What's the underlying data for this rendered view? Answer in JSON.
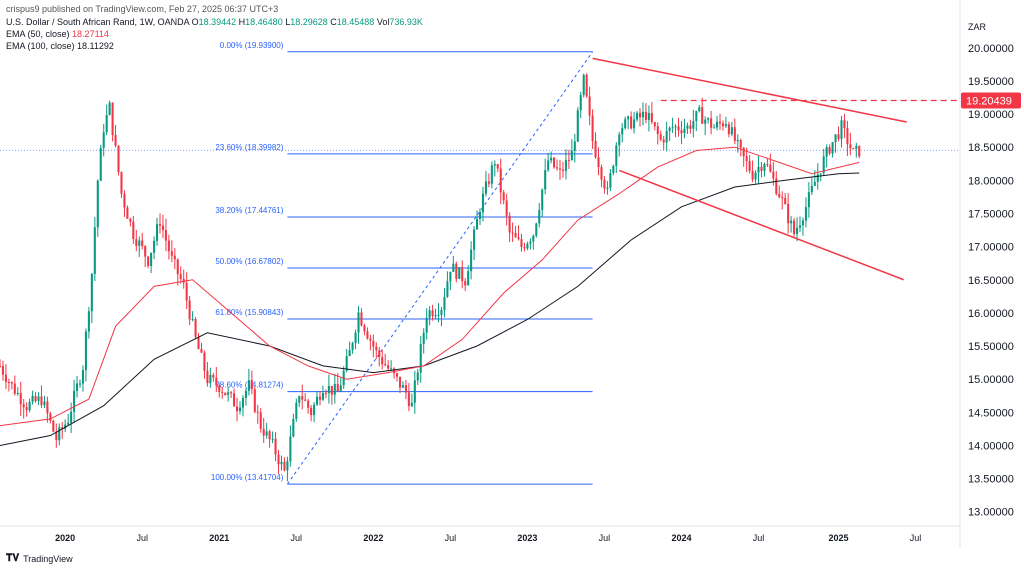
{
  "header": {
    "publisher": "crispus9 published on TradingView.com, Feb 27, 2025 06:37 UTC+3",
    "symbol": "U.S. Dollar / South African Rand, 1W, OANDA",
    "ohlc": [
      {
        "k": "O",
        "v": "18.39442"
      },
      {
        "k": "H",
        "v": "18.46480"
      },
      {
        "k": "L",
        "v": "18.29628"
      },
      {
        "k": "C",
        "v": "18.45488"
      },
      {
        "k": "Vol",
        "v": "736.93K"
      }
    ],
    "ema50_label": "EMA (50, close)",
    "ema50_value": "18.27114",
    "ema100_label": "EMA (100, close)",
    "ema100_value": "18.11292",
    "currency": "ZAR"
  },
  "footer": {
    "brand": "TradingView",
    "logo_icon": "tradingview-logo-icon"
  },
  "colors": {
    "up": "#089981",
    "down": "#f23645",
    "ema50": "#f23645",
    "ema100": "#131722",
    "fib": "#2962ff",
    "trend": "#f23645",
    "grid": "#eef0f3"
  },
  "chart_data": {
    "type": "candlestick",
    "ylim": [
      12.8,
      20.6
    ],
    "yticks": [
      "20.00000",
      "19.50000",
      "19.00000",
      "18.50000",
      "18.00000",
      "17.50000",
      "17.00000",
      "16.50000",
      "16.00000",
      "15.50000",
      "15.00000",
      "14.50000",
      "14.00000",
      "13.50000",
      "13.00000"
    ],
    "ytick_values": [
      20.0,
      19.5,
      19.0,
      18.5,
      18.0,
      17.5,
      17.0,
      16.5,
      16.0,
      15.5,
      15.0,
      14.5,
      14.0,
      13.5,
      13.0
    ],
    "xlim": [
      "2019-08-05",
      "2025-10-20"
    ],
    "xticks": [
      {
        "label": "2020",
        "date": "2020-01-06",
        "year": true
      },
      {
        "label": "Jul",
        "date": "2020-07-06",
        "year": false
      },
      {
        "label": "2021",
        "date": "2021-01-04",
        "year": true
      },
      {
        "label": "Jul",
        "date": "2021-07-05",
        "year": false
      },
      {
        "label": "2022",
        "date": "2022-01-03",
        "year": true
      },
      {
        "label": "Jul",
        "date": "2022-07-04",
        "year": false
      },
      {
        "label": "2023",
        "date": "2023-01-02",
        "year": true
      },
      {
        "label": "Jul",
        "date": "2023-07-03",
        "year": false
      },
      {
        "label": "2024",
        "date": "2024-01-01",
        "year": true
      },
      {
        "label": "Jul",
        "date": "2024-07-01",
        "year": false
      },
      {
        "label": "2025",
        "date": "2025-01-06",
        "year": true
      },
      {
        "label": "Jul",
        "date": "2025-07-07",
        "year": false
      }
    ],
    "close_path": [
      [
        "2019-08-05",
        15.2
      ],
      [
        "2019-09-02",
        14.9
      ],
      [
        "2019-10-07",
        14.6
      ],
      [
        "2019-11-11",
        14.7
      ],
      [
        "2019-12-16",
        14.1
      ],
      [
        "2020-01-13",
        14.4
      ],
      [
        "2020-02-17",
        15.2
      ],
      [
        "2020-03-09",
        16.6
      ],
      [
        "2020-03-23",
        18.0
      ],
      [
        "2020-04-06",
        18.8
      ],
      [
        "2020-04-20",
        19.1
      ],
      [
        "2020-05-18",
        17.8
      ],
      [
        "2020-06-15",
        17.2
      ],
      [
        "2020-07-20",
        16.8
      ],
      [
        "2020-08-17",
        17.4
      ],
      [
        "2020-09-14",
        16.8
      ],
      [
        "2020-10-12",
        16.4
      ],
      [
        "2020-11-09",
        15.6
      ],
      [
        "2020-12-07",
        15.0
      ],
      [
        "2021-01-04",
        14.9
      ],
      [
        "2021-02-15",
        14.6
      ],
      [
        "2021-03-15",
        14.9
      ],
      [
        "2021-04-12",
        14.3
      ],
      [
        "2021-05-10",
        14.0
      ],
      [
        "2021-06-07",
        13.6
      ],
      [
        "2021-07-12",
        14.8
      ],
      [
        "2021-08-09",
        14.5
      ],
      [
        "2021-09-06",
        14.9
      ],
      [
        "2021-10-11",
        14.8
      ],
      [
        "2021-11-08",
        15.4
      ],
      [
        "2021-11-29",
        16.0
      ],
      [
        "2022-01-10",
        15.4
      ],
      [
        "2022-02-14",
        15.1
      ],
      [
        "2022-03-21",
        14.8
      ],
      [
        "2022-04-04",
        14.6
      ],
      [
        "2022-05-09",
        16.0
      ],
      [
        "2022-06-13",
        16.1
      ],
      [
        "2022-07-04",
        16.7
      ],
      [
        "2022-08-08",
        16.5
      ],
      [
        "2022-09-12",
        17.6
      ],
      [
        "2022-10-17",
        18.3
      ],
      [
        "2022-11-21",
        17.2
      ],
      [
        "2022-12-19",
        17.0
      ],
      [
        "2023-01-16",
        17.2
      ],
      [
        "2023-02-20",
        18.3
      ],
      [
        "2023-03-20",
        18.1
      ],
      [
        "2023-04-17",
        18.4
      ],
      [
        "2023-05-15",
        19.5
      ],
      [
        "2023-06-05",
        18.6
      ],
      [
        "2023-07-10",
        17.8
      ],
      [
        "2023-08-07",
        18.8
      ],
      [
        "2023-09-11",
        18.9
      ],
      [
        "2023-10-09",
        19.0
      ],
      [
        "2023-11-13",
        18.6
      ],
      [
        "2023-12-11",
        18.8
      ],
      [
        "2024-01-15",
        18.8
      ],
      [
        "2024-02-12",
        19.0
      ],
      [
        "2024-03-18",
        18.8
      ],
      [
        "2024-04-15",
        18.9
      ],
      [
        "2024-05-20",
        18.4
      ],
      [
        "2024-06-17",
        18.1
      ],
      [
        "2024-07-15",
        18.3
      ],
      [
        "2024-08-19",
        17.8
      ],
      [
        "2024-09-23",
        17.2
      ],
      [
        "2024-10-21",
        17.6
      ],
      [
        "2024-11-18",
        18.1
      ],
      [
        "2024-12-16",
        18.5
      ],
      [
        "2025-01-13",
        18.8
      ],
      [
        "2025-02-10",
        18.4
      ],
      [
        "2025-02-24",
        18.45
      ]
    ],
    "ema50": [
      [
        "2019-08-05",
        14.3
      ],
      [
        "2019-12-02",
        14.4
      ],
      [
        "2020-03-02",
        14.7
      ],
      [
        "2020-05-04",
        15.8
      ],
      [
        "2020-08-03",
        16.4
      ],
      [
        "2020-11-02",
        16.5
      ],
      [
        "2021-02-01",
        16.0
      ],
      [
        "2021-05-03",
        15.5
      ],
      [
        "2021-08-02",
        15.2
      ],
      [
        "2021-11-01",
        15.0
      ],
      [
        "2022-02-07",
        15.1
      ],
      [
        "2022-05-02",
        15.2
      ],
      [
        "2022-08-01",
        15.6
      ],
      [
        "2022-11-07",
        16.3
      ],
      [
        "2023-02-06",
        16.8
      ],
      [
        "2023-05-01",
        17.4
      ],
      [
        "2023-08-07",
        17.8
      ],
      [
        "2023-11-06",
        18.2
      ],
      [
        "2024-02-05",
        18.45
      ],
      [
        "2024-05-06",
        18.5
      ],
      [
        "2024-08-05",
        18.3
      ],
      [
        "2024-11-04",
        18.1
      ],
      [
        "2025-02-24",
        18.27
      ]
    ],
    "ema100": [
      [
        "2019-08-05",
        14.0
      ],
      [
        "2019-12-02",
        14.15
      ],
      [
        "2020-04-06",
        14.6
      ],
      [
        "2020-08-03",
        15.3
      ],
      [
        "2020-12-07",
        15.7
      ],
      [
        "2021-05-03",
        15.5
      ],
      [
        "2021-09-06",
        15.2
      ],
      [
        "2022-01-03",
        15.1
      ],
      [
        "2022-05-02",
        15.2
      ],
      [
        "2022-09-05",
        15.5
      ],
      [
        "2023-01-02",
        15.9
      ],
      [
        "2023-05-01",
        16.4
      ],
      [
        "2023-09-04",
        17.1
      ],
      [
        "2024-01-01",
        17.6
      ],
      [
        "2024-05-06",
        17.9
      ],
      [
        "2024-09-02",
        18.0
      ],
      [
        "2025-01-06",
        18.1
      ],
      [
        "2025-02-24",
        18.11
      ]
    ],
    "fib_levels": [
      {
        "label": "0.00% (19.93900)",
        "value": 19.939
      },
      {
        "label": "23.60% (18.39982)",
        "value": 18.39982
      },
      {
        "label": "38.20% (17.44761)",
        "value": 17.44761
      },
      {
        "label": "50.00% (16.67802)",
        "value": 16.67802
      },
      {
        "label": "61.80% (15.90843)",
        "value": 15.90843
      },
      {
        "label": "78.60% (14.81274)",
        "value": 14.81274
      },
      {
        "label": "100.00% (13.41704)",
        "value": 13.41704
      }
    ],
    "fib_x_range": [
      "2021-06-14",
      "2023-06-05"
    ],
    "fib_diagonal": [
      [
        "2021-06-14",
        13.41704
      ],
      [
        "2023-06-05",
        19.939
      ]
    ],
    "trendlines": [
      {
        "name": "upper-resistance-line",
        "from": [
          "2023-06-05",
          19.84
        ],
        "to": [
          "2025-06-16",
          18.88
        ]
      },
      {
        "name": "lower-support-line",
        "from": [
          "2023-08-07",
          18.15
        ],
        "to": [
          "2025-06-09",
          16.5
        ]
      }
    ],
    "resistance_level": {
      "label": "19.20439",
      "value": 19.20439,
      "from": "2023-11-13",
      "to": "2025-03-24"
    },
    "current_price": 18.45488
  }
}
